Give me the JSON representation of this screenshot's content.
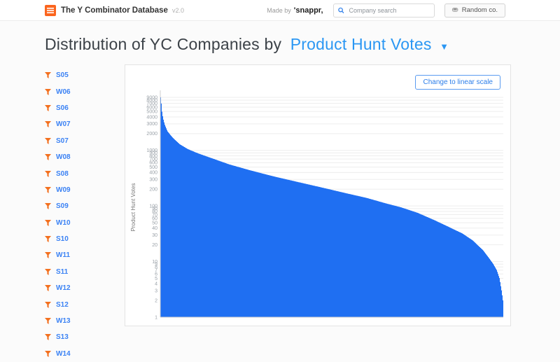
{
  "header": {
    "title": "The Y Combinator Database",
    "version": "v2.0",
    "made_by": "Made by",
    "brand": "'snappr,",
    "search_placeholder": "Company search",
    "random_label": "Random co."
  },
  "heading": {
    "prefix": "Distribution of YC Companies by",
    "selected": "Product Hunt Votes"
  },
  "sidebar": {
    "batches": [
      "S05",
      "W06",
      "S06",
      "W07",
      "S07",
      "W08",
      "S08",
      "W09",
      "S09",
      "W10",
      "S10",
      "W11",
      "S11",
      "W12",
      "S12",
      "W13",
      "S13",
      "W14"
    ]
  },
  "chart": {
    "button": "Change to linear scale"
  },
  "colors": {
    "accent_orange": "#f3701f",
    "link_blue": "#3b82f4",
    "heading_blue": "#2b97f3",
    "chart_blue": "#1f6ff2"
  },
  "chart_data": {
    "type": "area",
    "title": "Distribution of YC Companies by Product Hunt Votes",
    "xlabel": "",
    "ylabel": "Product Hunt Votes",
    "yscale": "log",
    "ylim": [
      1,
      9000
    ],
    "grid": true,
    "legend": false,
    "yticks": [
      1,
      2,
      3,
      4,
      5,
      6,
      7,
      8,
      9,
      10,
      20,
      30,
      40,
      50,
      60,
      70,
      80,
      90,
      100,
      200,
      300,
      400,
      500,
      600,
      700,
      800,
      900,
      1000,
      2000,
      3000,
      4000,
      5000,
      6000,
      7000,
      8000,
      9000
    ],
    "note": "companies sorted descending by Product Hunt votes; x is normalized rank 0-1",
    "points": [
      [
        0,
        9000
      ],
      [
        0.002,
        7000
      ],
      [
        0.004,
        5000
      ],
      [
        0.007,
        3800
      ],
      [
        0.012,
        2900
      ],
      [
        0.02,
        2200
      ],
      [
        0.035,
        1700
      ],
      [
        0.055,
        1300
      ],
      [
        0.08,
        1050
      ],
      [
        0.11,
        880
      ],
      [
        0.15,
        720
      ],
      [
        0.2,
        560
      ],
      [
        0.26,
        440
      ],
      [
        0.33,
        340
      ],
      [
        0.4,
        270
      ],
      [
        0.47,
        215
      ],
      [
        0.54,
        170
      ],
      [
        0.6,
        140
      ],
      [
        0.66,
        110
      ],
      [
        0.7,
        95
      ],
      [
        0.75,
        75
      ],
      [
        0.8,
        55
      ],
      [
        0.84,
        42
      ],
      [
        0.88,
        32
      ],
      [
        0.91,
        24
      ],
      [
        0.94,
        16
      ],
      [
        0.96,
        11
      ],
      [
        0.97,
        9
      ],
      [
        0.98,
        7
      ],
      [
        0.988,
        5
      ],
      [
        0.994,
        3
      ],
      [
        0.998,
        2
      ],
      [
        1,
        1
      ]
    ]
  }
}
